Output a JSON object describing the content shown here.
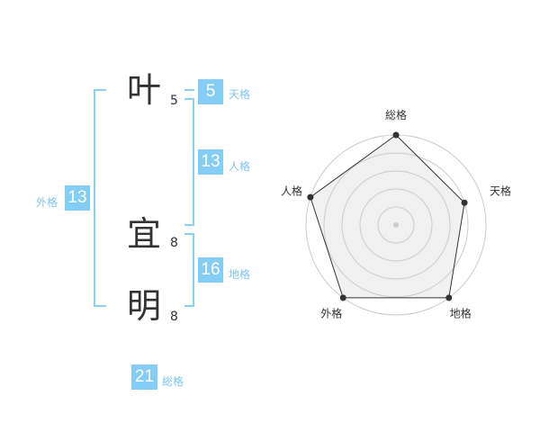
{
  "name": [
    {
      "char": "叶",
      "strokes": "5"
    },
    {
      "char": "宜",
      "strokes": "8"
    },
    {
      "char": "明",
      "strokes": "8"
    }
  ],
  "kaku": {
    "ten": {
      "value": "5",
      "label": "天格"
    },
    "jin": {
      "value": "13",
      "label": "人格"
    },
    "chi": {
      "value": "16",
      "label": "地格"
    },
    "gai": {
      "value": "13",
      "label": "外格"
    },
    "so": {
      "value": "21",
      "label": "総格"
    }
  },
  "colors": {
    "accent": "#84cdf7",
    "label": "#7fc6ee"
  },
  "chart_data": {
    "type": "radar",
    "categories": [
      "総格",
      "天格",
      "地格",
      "外格",
      "人格"
    ],
    "values": [
      5,
      4,
      5,
      5,
      5
    ],
    "rmax": 5,
    "rings": 5
  }
}
